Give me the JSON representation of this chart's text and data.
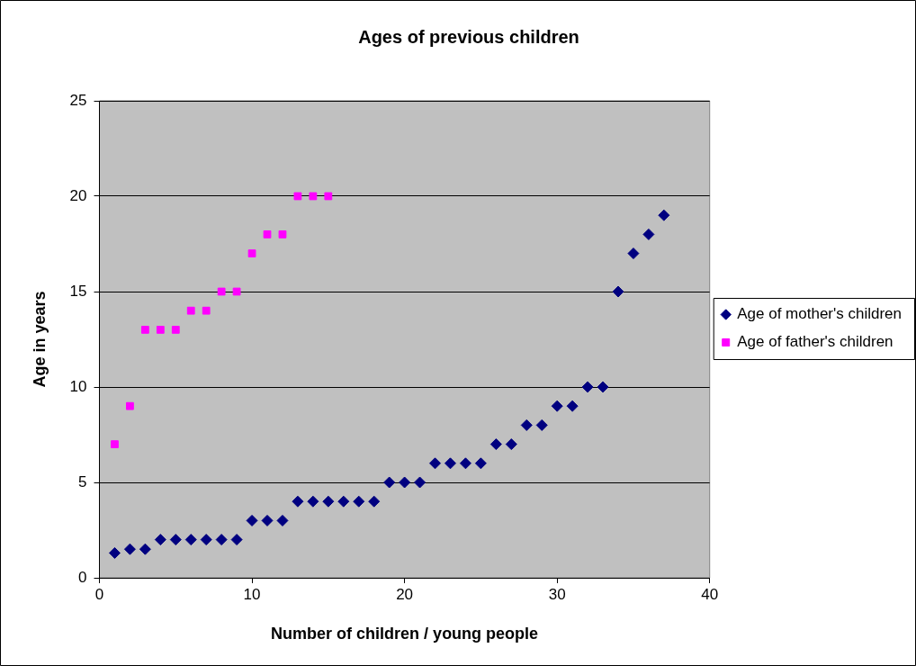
{
  "chart_data": {
    "type": "scatter",
    "title": "Ages of previous children",
    "xlabel": "Number of children / young people",
    "ylabel": "Age in years",
    "xlim": [
      0,
      40
    ],
    "xticks": [
      0,
      10,
      20,
      30,
      40
    ],
    "ylim": [
      0,
      25
    ],
    "yticks": [
      0,
      5,
      10,
      15,
      20,
      25
    ],
    "grid": "y",
    "legend": "right",
    "series": [
      {
        "name": "Age of mother's children",
        "color": "#000080",
        "marker": "diamond",
        "x": [
          1,
          2,
          3,
          4,
          5,
          6,
          7,
          8,
          9,
          10,
          11,
          12,
          13,
          14,
          15,
          16,
          17,
          18,
          19,
          20,
          21,
          22,
          23,
          24,
          25,
          26,
          27,
          28,
          29,
          30,
          31,
          32,
          33,
          34,
          35,
          36,
          37
        ],
        "values": [
          1.3,
          1.5,
          1.5,
          2,
          2,
          2,
          2,
          2,
          2,
          3,
          3,
          3,
          4,
          4,
          4,
          4,
          4,
          4,
          5,
          5,
          5,
          6,
          6,
          6,
          6,
          7,
          7,
          8,
          8,
          9,
          9,
          10,
          10,
          15,
          17,
          18,
          19
        ]
      },
      {
        "name": "Age of father's children",
        "color": "#ff00ff",
        "marker": "square",
        "x": [
          1,
          2,
          3,
          4,
          5,
          6,
          7,
          8,
          9,
          10,
          11,
          12,
          13,
          14,
          15
        ],
        "values": [
          7,
          9,
          13,
          13,
          13,
          14,
          14,
          15,
          15,
          17,
          18,
          18,
          20,
          20,
          20
        ]
      }
    ]
  }
}
